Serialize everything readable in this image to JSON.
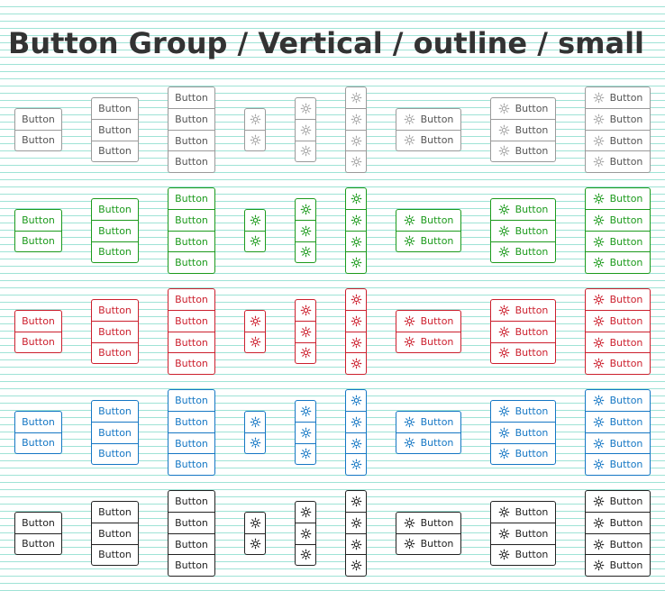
{
  "page": {
    "title": "Button Group / Vertical / outline / small"
  },
  "button": {
    "label": "Button",
    "icon": "gear-icon"
  },
  "variants": [
    {
      "id": "default",
      "color": "#9a9a9a"
    },
    {
      "id": "success",
      "color": "#1c9a1c"
    },
    {
      "id": "danger",
      "color": "#cc1f2d"
    },
    {
      "id": "primary",
      "color": "#1577c4"
    },
    {
      "id": "dark",
      "color": "#222222"
    }
  ],
  "columns": [
    {
      "content": "text",
      "count": 2
    },
    {
      "content": "text",
      "count": 3
    },
    {
      "content": "text",
      "count": 4
    },
    {
      "content": "icon",
      "count": 2
    },
    {
      "content": "icon",
      "count": 3
    },
    {
      "content": "icon",
      "count": 4
    },
    {
      "content": "icon-text",
      "count": 2
    },
    {
      "content": "icon-text",
      "count": 3
    },
    {
      "content": "icon-text",
      "count": 4
    }
  ]
}
